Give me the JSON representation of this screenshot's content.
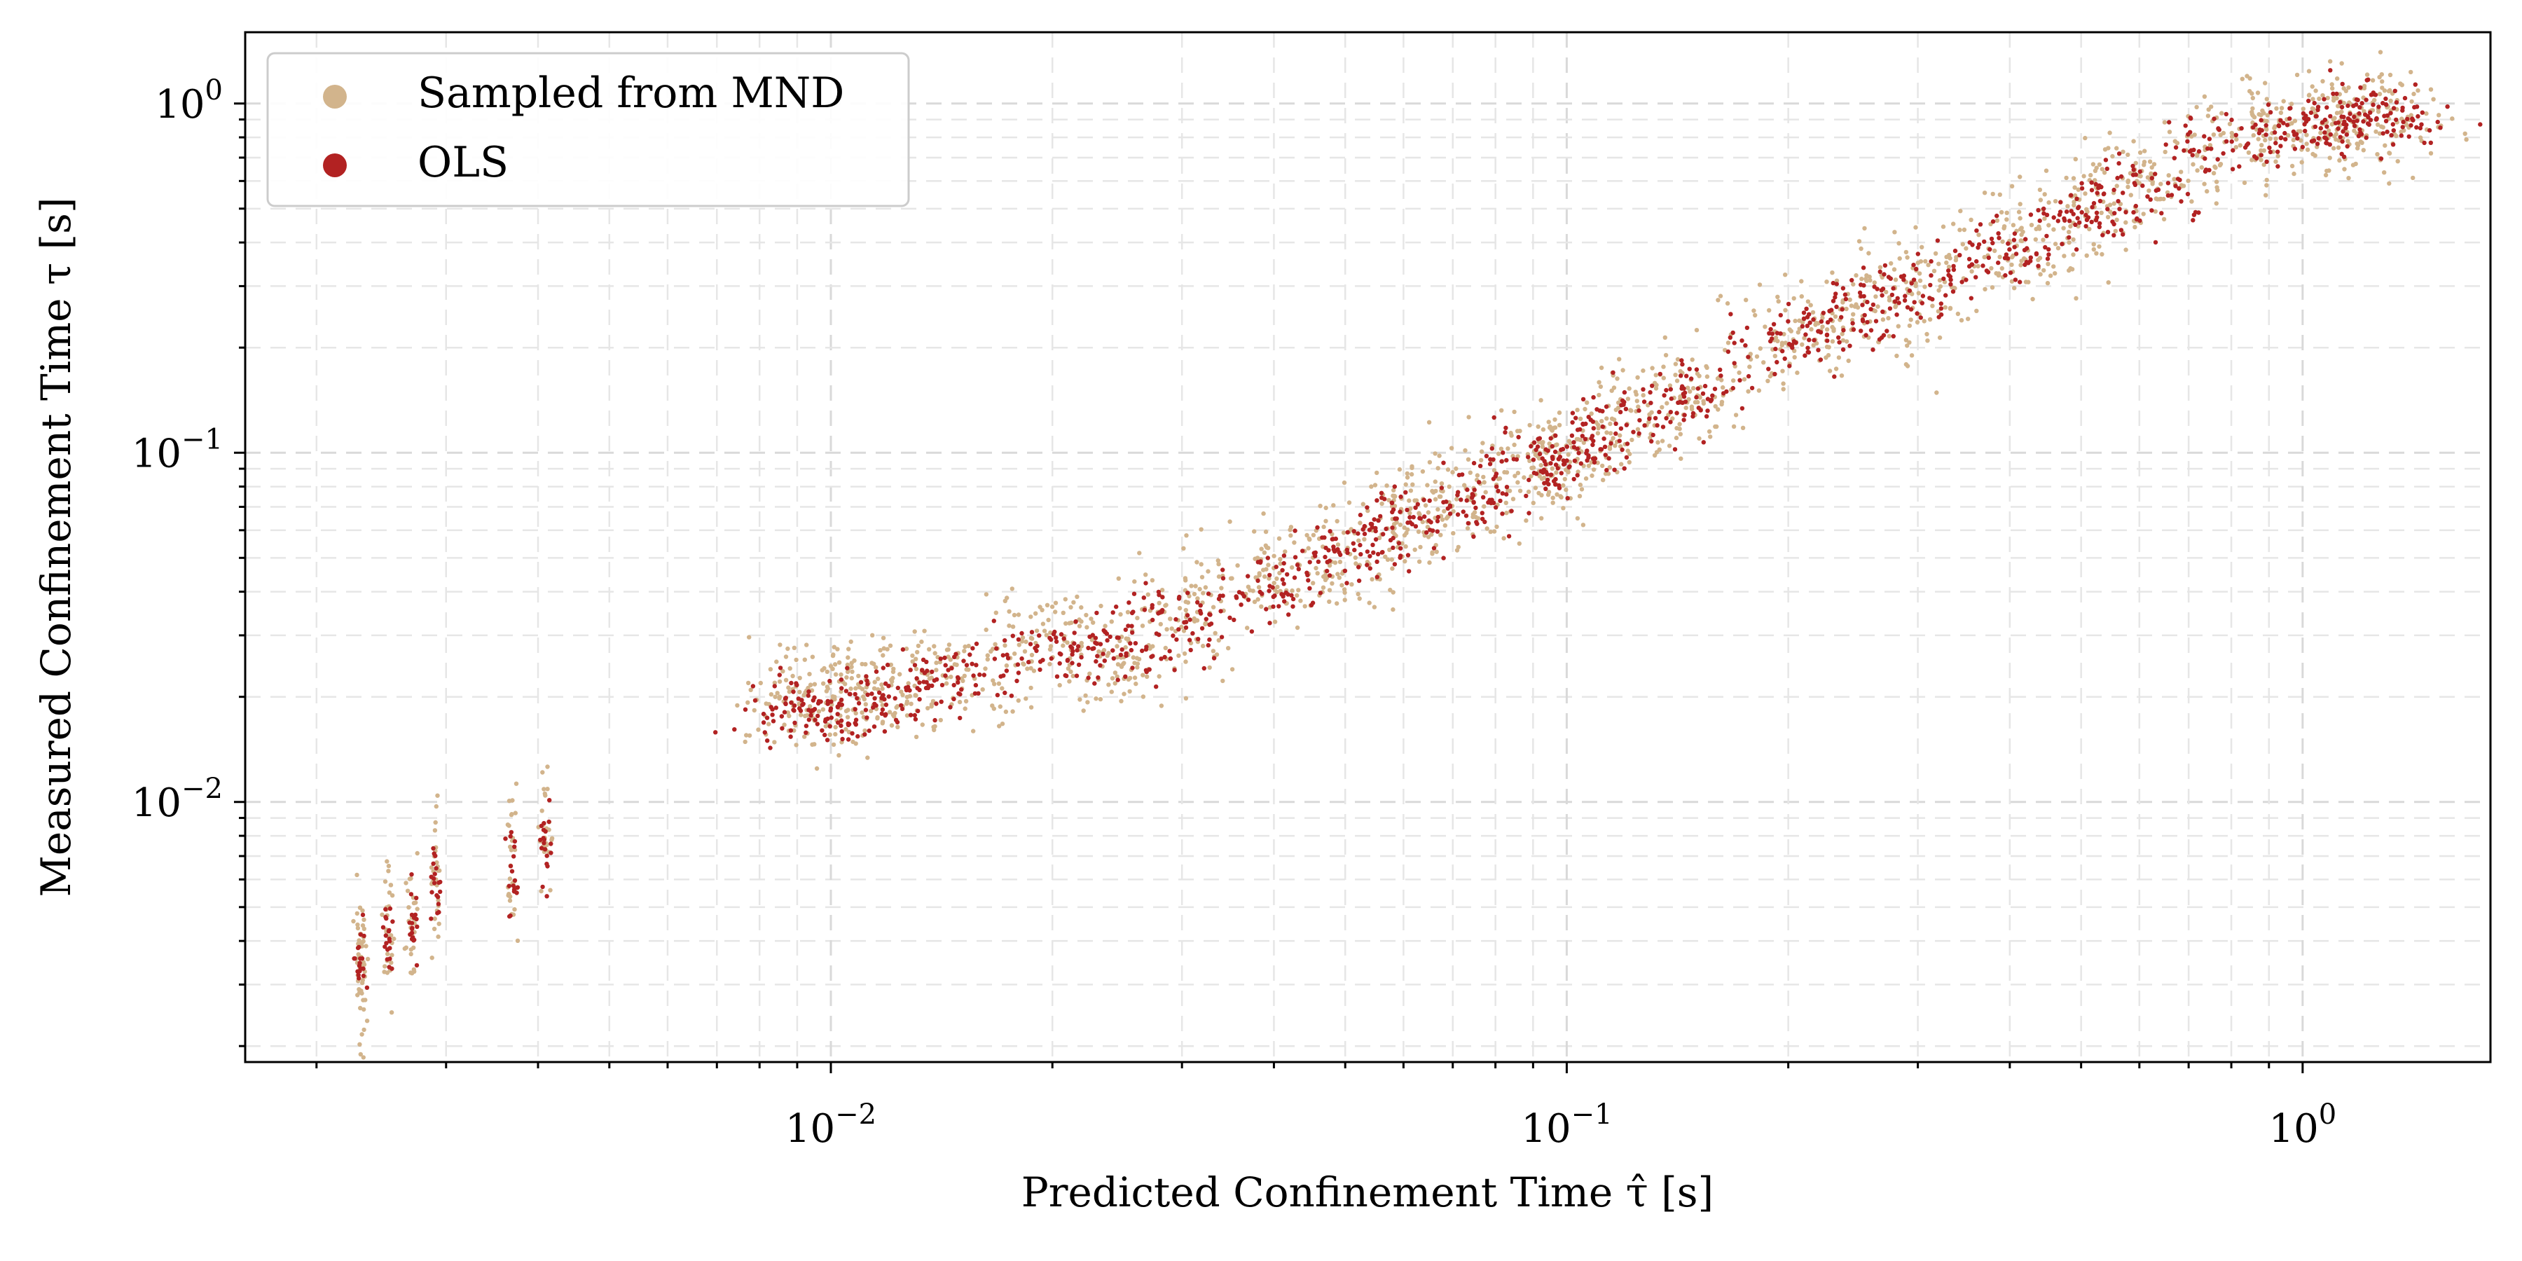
{
  "chart_data": {
    "type": "scatter",
    "title": "",
    "xlabel": "Predicted Confinement Time  τ̂ [s]",
    "ylabel": "Measured Confinement Time  τ [s]",
    "xscale": "log",
    "yscale": "log",
    "xlim": [
      0.0016,
      1.8
    ],
    "ylim": [
      0.0018,
      1.6
    ],
    "x_ticks": [
      {
        "base": "10",
        "exp": "−2",
        "value": 0.01
      },
      {
        "base": "10",
        "exp": "−1",
        "value": 0.1
      },
      {
        "base": "10",
        "exp": "0",
        "value": 1
      }
    ],
    "y_ticks": [
      {
        "base": "10",
        "exp": "−2",
        "value": 0.01
      },
      {
        "base": "10",
        "exp": "−1",
        "value": 0.1
      },
      {
        "base": "10",
        "exp": "0",
        "value": 1
      }
    ],
    "grid": true,
    "legend_position": "top-left",
    "series": [
      {
        "name": "Sampled from MND",
        "color": "#d2b48c",
        "marker_size": "small",
        "description_points": [
          [
            0.0023,
            0.0037
          ],
          [
            0.0023,
            0.003
          ],
          [
            0.0025,
            0.0044
          ],
          [
            0.0027,
            0.0048
          ],
          [
            0.0029,
            0.006
          ],
          [
            0.0037,
            0.0065
          ],
          [
            0.0041,
            0.008
          ],
          [
            0.009,
            0.019
          ],
          [
            0.01,
            0.02
          ],
          [
            0.012,
            0.022
          ],
          [
            0.015,
            0.022
          ],
          [
            0.02,
            0.03
          ],
          [
            0.025,
            0.025
          ],
          [
            0.03,
            0.035
          ],
          [
            0.04,
            0.045
          ],
          [
            0.05,
            0.05
          ],
          [
            0.06,
            0.065
          ],
          [
            0.07,
            0.075
          ],
          [
            0.09,
            0.09
          ],
          [
            0.1,
            0.1
          ],
          [
            0.12,
            0.13
          ],
          [
            0.15,
            0.15
          ],
          [
            0.2,
            0.22
          ],
          [
            0.25,
            0.25
          ],
          [
            0.3,
            0.3
          ],
          [
            0.4,
            0.38
          ],
          [
            0.5,
            0.5
          ],
          [
            0.6,
            0.6
          ],
          [
            0.8,
            0.8
          ],
          [
            1.0,
            0.85
          ],
          [
            1.2,
            0.95
          ],
          [
            1.3,
            0.92
          ]
        ]
      },
      {
        "name": "OLS",
        "color": "#b22222",
        "marker_size": "small",
        "description_points": [
          [
            0.0023,
            0.0036
          ],
          [
            0.0025,
            0.004
          ],
          [
            0.0027,
            0.0043
          ],
          [
            0.0029,
            0.0056
          ],
          [
            0.0037,
            0.0063
          ],
          [
            0.0041,
            0.0072
          ],
          [
            0.009,
            0.018
          ],
          [
            0.01,
            0.019
          ],
          [
            0.012,
            0.02
          ],
          [
            0.015,
            0.023
          ],
          [
            0.02,
            0.028
          ],
          [
            0.025,
            0.027
          ],
          [
            0.03,
            0.034
          ],
          [
            0.04,
            0.042
          ],
          [
            0.05,
            0.052
          ],
          [
            0.06,
            0.06
          ],
          [
            0.07,
            0.072
          ],
          [
            0.09,
            0.09
          ],
          [
            0.1,
            0.1
          ],
          [
            0.12,
            0.12
          ],
          [
            0.15,
            0.15
          ],
          [
            0.2,
            0.21
          ],
          [
            0.25,
            0.25
          ],
          [
            0.3,
            0.3
          ],
          [
            0.4,
            0.37
          ],
          [
            0.5,
            0.48
          ],
          [
            0.6,
            0.58
          ],
          [
            0.8,
            0.78
          ],
          [
            1.0,
            0.82
          ],
          [
            1.2,
            0.93
          ],
          [
            1.3,
            0.92
          ]
        ]
      }
    ]
  }
}
